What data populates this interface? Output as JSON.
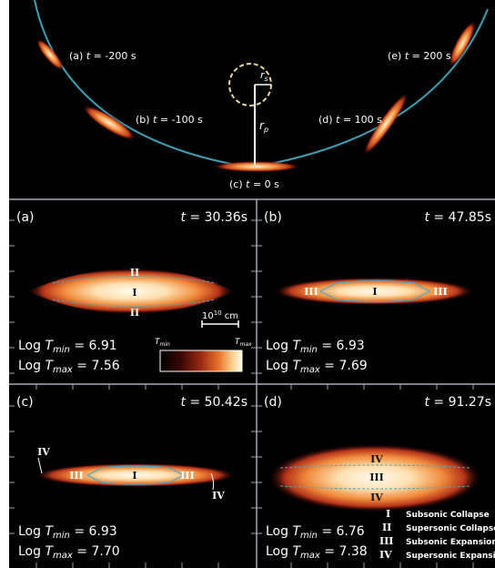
{
  "top": {
    "labels": [
      {
        "id": "a",
        "prefix": "(a) ",
        "var": "t",
        "value": " = -200 s"
      },
      {
        "id": "b",
        "prefix": "(b) ",
        "var": "t",
        "value": " = -100 s"
      },
      {
        "id": "c",
        "prefix": "(c) ",
        "var": "t",
        "value": " = 0 s"
      },
      {
        "id": "d",
        "prefix": "(d) ",
        "var": "t",
        "value": " = 100 s"
      },
      {
        "id": "e",
        "prefix": "(e) ",
        "var": "t",
        "value": " = 200 s"
      }
    ],
    "rs_label": "r",
    "rs_sub": "s",
    "rp_label": "r",
    "rp_sub": "p"
  },
  "panels": [
    {
      "id": "a",
      "label": "(a)",
      "time_var": "t",
      "time_value": " = 30.36s",
      "tmin_value": "6.91",
      "tmax_value": "7.56",
      "regions": [
        "II",
        "I",
        "II"
      ]
    },
    {
      "id": "b",
      "label": "(b)",
      "time_var": "t",
      "time_value": " = 47.85s",
      "tmin_value": "6.93",
      "tmax_value": "7.69",
      "regions": [
        "III",
        "I",
        "III"
      ]
    },
    {
      "id": "c",
      "label": "(c)",
      "time_var": "t",
      "time_value": " = 50.42s",
      "tmin_value": "6.93",
      "tmax_value": "7.70",
      "regions": [
        "IV",
        "III",
        "I",
        "III",
        "IV"
      ]
    },
    {
      "id": "d",
      "label": "(d)",
      "time_var": "t",
      "time_value": " = 91.27s",
      "tmin_value": "6.76",
      "tmax_value": "7.38",
      "regions": [
        "IV",
        "III",
        "IV"
      ]
    }
  ],
  "log_prefix": "Log ",
  "T": "T",
  "min_sub": "min",
  "max_sub": "max",
  "eq": " = ",
  "scalebar": {
    "base": "10",
    "exp": "10",
    "unit": " cm"
  },
  "colorbar": {
    "min_label": "T",
    "min_sub": "min",
    "max_label": "T",
    "max_sub": "max"
  },
  "legend": [
    {
      "roman": "I",
      "text": "Subsonic Collapse"
    },
    {
      "roman": "II",
      "text": "Supersonic Collapse"
    },
    {
      "roman": "III",
      "text": "Subsonic Expansion"
    },
    {
      "roman": "IV",
      "text": "Supersonic Expansion"
    }
  ],
  "colors": {
    "background": "#000000",
    "orbit": "#3a9fb5",
    "contour": "#4aa9c8",
    "hot": "#fff6e0",
    "mid": "#f07a2a",
    "cool": "#5a1008"
  }
}
